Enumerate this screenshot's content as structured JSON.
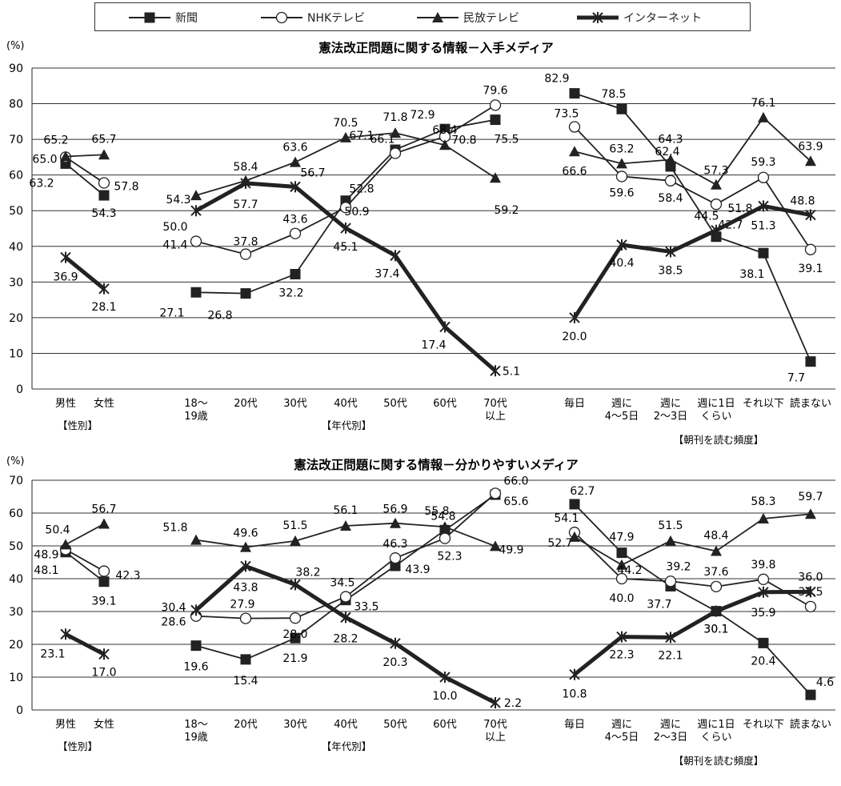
{
  "legend": [
    {
      "name": "新聞",
      "marker": "square",
      "width": 2
    },
    {
      "name": "NHKテレビ",
      "marker": "circle",
      "width": 2
    },
    {
      "name": "民放テレビ",
      "marker": "triangle",
      "width": 2
    },
    {
      "name": "インターネット",
      "marker": "x",
      "width": 5
    }
  ],
  "chart_data": [
    {
      "type": "line",
      "title": "憲法改正問題に関する情報－入手メディア",
      "ylabel": "(%)",
      "ylim": [
        0,
        90
      ],
      "yticks": [
        0,
        10,
        20,
        30,
        40,
        50,
        60,
        70,
        80,
        90
      ],
      "groups": [
        {
          "label": "【性別】",
          "categories": [
            "男性",
            "女性"
          ]
        },
        {
          "label": "【年代別】",
          "categories": [
            "18～\n19歳",
            "20代",
            "30代",
            "40代",
            "50代",
            "60代",
            "70代\n以上"
          ]
        },
        {
          "label": "【朝刊を読む頻度】",
          "categories": [
            "毎日",
            "週に\n4～5日",
            "週に\n2～3日",
            "週に1日\nくらい",
            "それ以下",
            "読まない"
          ]
        }
      ],
      "series": [
        {
          "name": "新聞",
          "values": [
            [
              63.2,
              54.3
            ],
            [
              27.1,
              26.8,
              32.2,
              52.8,
              67.1,
              72.9,
              75.5
            ],
            [
              82.9,
              78.5,
              62.4,
              42.7,
              38.1,
              7.7
            ]
          ]
        },
        {
          "name": "NHKテレビ",
          "values": [
            [
              65.0,
              57.8
            ],
            [
              41.4,
              37.8,
              43.6,
              50.9,
              66.1,
              70.8,
              79.6
            ],
            [
              73.5,
              59.6,
              58.4,
              51.8,
              59.3,
              39.1
            ]
          ]
        },
        {
          "name": "民放テレビ",
          "values": [
            [
              65.2,
              65.7
            ],
            [
              54.3,
              58.4,
              63.6,
              70.5,
              71.8,
              68.4,
              59.2
            ],
            [
              66.6,
              63.2,
              64.3,
              57.3,
              76.1,
              63.9
            ]
          ]
        },
        {
          "name": "インターネット",
          "values": [
            [
              36.9,
              28.1
            ],
            [
              50.0,
              57.7,
              56.7,
              45.1,
              37.4,
              17.4,
              5.1
            ],
            [
              20.0,
              40.4,
              38.5,
              44.5,
              51.3,
              48.8
            ]
          ]
        }
      ]
    },
    {
      "type": "line",
      "title": "憲法改正問題に関する情報－分かりやすいメディア",
      "ylabel": "(%)",
      "ylim": [
        0,
        70
      ],
      "yticks": [
        0,
        10,
        20,
        30,
        40,
        50,
        60,
        70
      ],
      "groups": [
        {
          "label": "【性別】",
          "categories": [
            "男性",
            "女性"
          ]
        },
        {
          "label": "【年代別】",
          "categories": [
            "18～\n19歳",
            "20代",
            "30代",
            "40代",
            "50代",
            "60代",
            "70代\n以上"
          ]
        },
        {
          "label": "【朝刊を読む頻度】",
          "categories": [
            "毎日",
            "週に\n4～5日",
            "週に\n2～3日",
            "週に1日\nくらい",
            "それ以下",
            "読まない"
          ]
        }
      ],
      "series": [
        {
          "name": "新聞",
          "values": [
            [
              48.1,
              39.1
            ],
            [
              19.6,
              15.4,
              21.9,
              33.5,
              43.9,
              54.8,
              65.6
            ],
            [
              62.7,
              47.9,
              37.7,
              30.1,
              20.4,
              4.6
            ]
          ]
        },
        {
          "name": "NHKテレビ",
          "values": [
            [
              48.9,
              42.3
            ],
            [
              28.6,
              27.9,
              28.0,
              34.5,
              46.3,
              52.3,
              66.0
            ],
            [
              54.1,
              40.0,
              39.2,
              37.6,
              39.8,
              31.5
            ]
          ]
        },
        {
          "name": "民放テレビ",
          "values": [
            [
              50.4,
              56.7
            ],
            [
              51.8,
              49.6,
              51.5,
              56.1,
              56.9,
              55.8,
              49.9
            ],
            [
              52.7,
              44.2,
              51.5,
              48.4,
              58.3,
              59.7
            ]
          ]
        },
        {
          "name": "インターネット",
          "values": [
            [
              23.1,
              17.0
            ],
            [
              30.4,
              43.8,
              38.2,
              28.2,
              20.3,
              10.0,
              2.2
            ],
            [
              10.8,
              22.3,
              22.1,
              30.1,
              35.9,
              36.0
            ]
          ]
        }
      ]
    }
  ]
}
